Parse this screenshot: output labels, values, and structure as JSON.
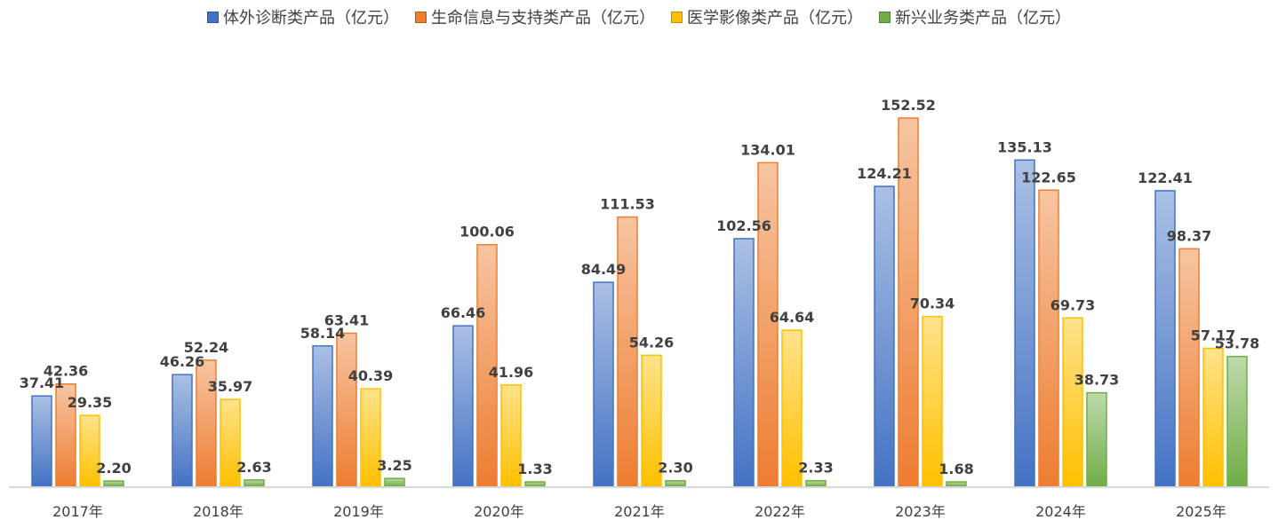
{
  "chart_data": {
    "type": "bar",
    "categories": [
      "2017年",
      "2018年",
      "2019年",
      "2020年",
      "2021年",
      "2022年",
      "2023年",
      "2024年",
      "2025年"
    ],
    "series": [
      {
        "name": "体外诊断类产品（亿元）",
        "color": "#4472C4",
        "values": [
          37.41,
          46.26,
          58.14,
          66.46,
          84.49,
          102.56,
          124.21,
          135.13,
          122.41
        ]
      },
      {
        "name": "生命信息与支持类产品（亿元）",
        "color": "#ED7D31",
        "values": [
          42.36,
          52.24,
          63.41,
          100.06,
          111.53,
          134.01,
          152.52,
          122.65,
          98.37
        ]
      },
      {
        "name": "医学影像类产品（亿元）",
        "color": "#FFC000",
        "values": [
          29.35,
          35.97,
          40.39,
          41.96,
          54.26,
          64.64,
          70.34,
          69.73,
          57.17
        ]
      },
      {
        "name": "新兴业务类产品（亿元）",
        "color": "#70AD47",
        "values": [
          2.2,
          2.63,
          3.25,
          1.33,
          2.3,
          2.33,
          1.68,
          38.73,
          53.78
        ]
      }
    ],
    "data_labels": [
      [
        "37.41",
        "46.26",
        "58.14",
        "66.46",
        "84.49",
        "102.56",
        "124.21",
        "135.13",
        "122.41"
      ],
      [
        "42.36",
        "52.24",
        "63.41",
        "100.06",
        "111.53",
        "134.01",
        "152.52",
        "122.65",
        "98.37"
      ],
      [
        "29.35",
        "35.97",
        "40.39",
        "41.96",
        "54.26",
        "64.64",
        "70.34",
        "69.73",
        "57.17"
      ],
      [
        "2.20",
        "2.63",
        "3.25",
        "1.33",
        "2.30",
        "2.33",
        "1.68",
        "38.73",
        "53.78"
      ]
    ],
    "title": "",
    "xlabel": "",
    "ylabel": "",
    "ylim": [
      0,
      160
    ],
    "grid": false,
    "y_axis_visible": false,
    "legend_position": "top-center"
  }
}
